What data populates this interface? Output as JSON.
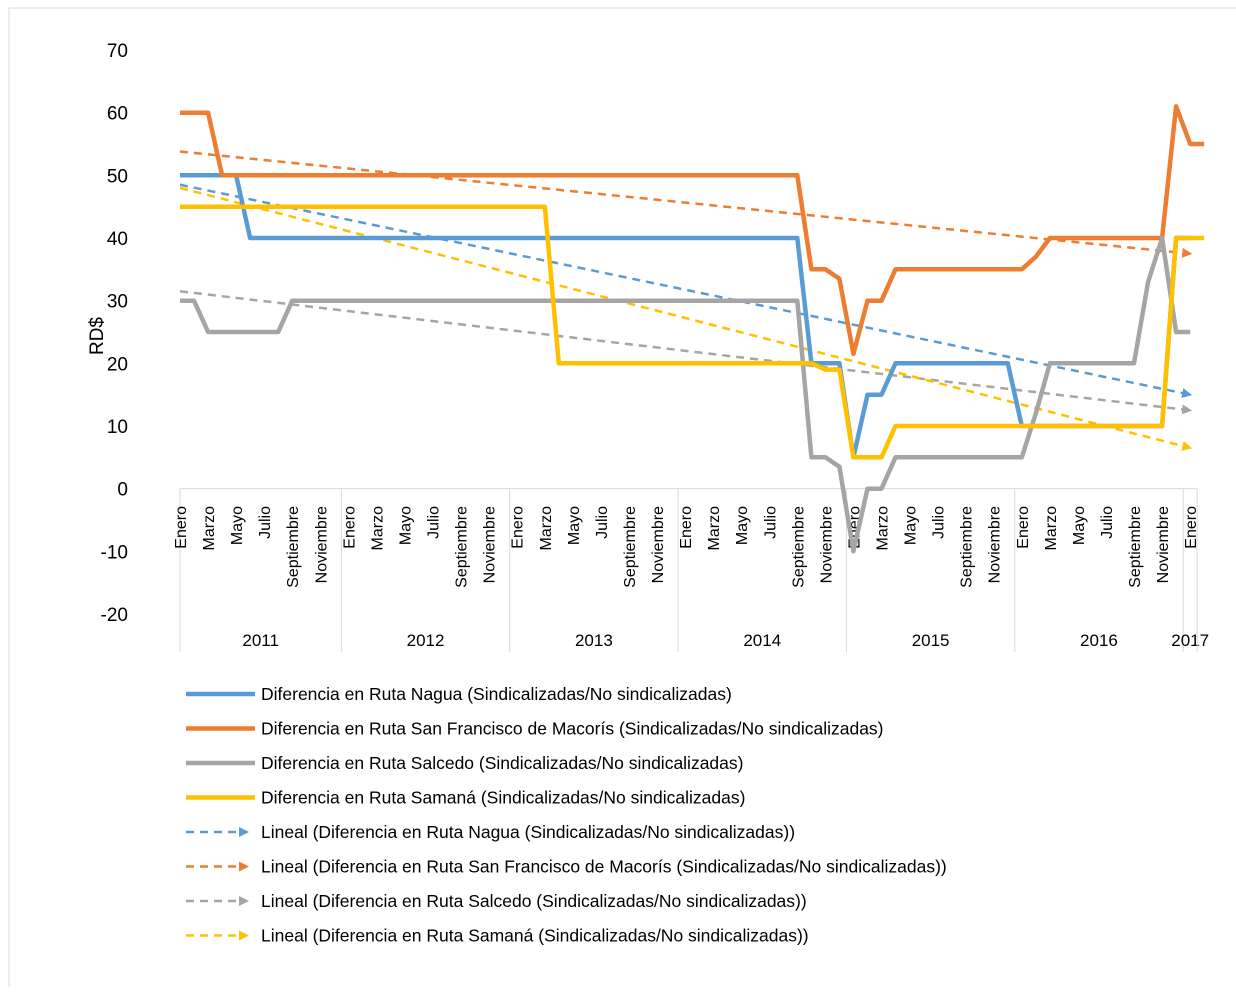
{
  "chart_data": {
    "type": "line",
    "ylabel": "RD$",
    "ylim": [
      -20,
      70
    ],
    "yticks": [
      -20,
      -10,
      0,
      10,
      20,
      30,
      40,
      50,
      60,
      70
    ],
    "grid": false,
    "legend_position": "bottom",
    "years": [
      {
        "label": "2011",
        "start": 0,
        "end": 12
      },
      {
        "label": "2012",
        "start": 12,
        "end": 24
      },
      {
        "label": "2013",
        "start": 24,
        "end": 36
      },
      {
        "label": "2014",
        "start": 36,
        "end": 48
      },
      {
        "label": "2015",
        "start": 48,
        "end": 60
      },
      {
        "label": "2016",
        "start": 60,
        "end": 72
      },
      {
        "label": "2017",
        "start": 72,
        "end": 73
      }
    ],
    "month_labels": [
      {
        "i": 0,
        "label": "Enero"
      },
      {
        "i": 2,
        "label": "Marzo"
      },
      {
        "i": 4,
        "label": "Mayo"
      },
      {
        "i": 6,
        "label": "Julio"
      },
      {
        "i": 8,
        "label": "Septiembre"
      },
      {
        "i": 10,
        "label": "Noviembre"
      },
      {
        "i": 12,
        "label": "Enero"
      },
      {
        "i": 14,
        "label": "Marzo"
      },
      {
        "i": 16,
        "label": "Mayo"
      },
      {
        "i": 18,
        "label": "Julio"
      },
      {
        "i": 20,
        "label": "Septiembre"
      },
      {
        "i": 22,
        "label": "Noviembre"
      },
      {
        "i": 24,
        "label": "Enero"
      },
      {
        "i": 26,
        "label": "Marzo"
      },
      {
        "i": 28,
        "label": "Mayo"
      },
      {
        "i": 30,
        "label": "Julio"
      },
      {
        "i": 32,
        "label": "Septiembre"
      },
      {
        "i": 34,
        "label": "Noviembre"
      },
      {
        "i": 36,
        "label": "Enero"
      },
      {
        "i": 38,
        "label": "Marzo"
      },
      {
        "i": 40,
        "label": "Mayo"
      },
      {
        "i": 42,
        "label": "Julio"
      },
      {
        "i": 44,
        "label": "Septiembre"
      },
      {
        "i": 46,
        "label": "Noviembre"
      },
      {
        "i": 48,
        "label": "Enero"
      },
      {
        "i": 50,
        "label": "Marzo"
      },
      {
        "i": 52,
        "label": "Mayo"
      },
      {
        "i": 54,
        "label": "Julio"
      },
      {
        "i": 56,
        "label": "Septiembre"
      },
      {
        "i": 58,
        "label": "Noviembre"
      },
      {
        "i": 60,
        "label": "Enero"
      },
      {
        "i": 62,
        "label": "Marzo"
      },
      {
        "i": 64,
        "label": "Mayo"
      },
      {
        "i": 66,
        "label": "Julio"
      },
      {
        "i": 68,
        "label": "Septiembre"
      },
      {
        "i": 70,
        "label": "Noviembre"
      },
      {
        "i": 72,
        "label": "Enero"
      }
    ],
    "series": [
      {
        "name": "Diferencia en Ruta Nagua (Sindicalizadas/No sindicalizadas)",
        "color": "#5B9BD5",
        "style": "solid",
        "values": [
          50,
          50,
          50,
          50,
          50,
          40,
          40,
          40,
          40,
          40,
          40,
          40,
          40,
          40,
          40,
          40,
          40,
          40,
          40,
          40,
          40,
          40,
          40,
          40,
          40,
          40,
          40,
          40,
          40,
          40,
          40,
          40,
          40,
          40,
          40,
          40,
          40,
          40,
          40,
          40,
          40,
          40,
          40,
          40,
          40,
          20,
          20,
          20,
          5,
          15,
          15,
          20,
          20,
          20,
          20,
          20,
          20,
          20,
          20,
          20,
          10,
          10,
          10,
          10,
          10,
          10,
          10,
          10,
          10,
          10,
          10,
          40,
          40
        ]
      },
      {
        "name": "Diferencia en Ruta San Francisco de Macorís (Sindicalizadas/No sindicalizadas)",
        "color": "#ED7D31",
        "style": "solid",
        "values": [
          60,
          60,
          60,
          50,
          50,
          50,
          50,
          50,
          50,
          50,
          50,
          50,
          50,
          50,
          50,
          50,
          50,
          50,
          50,
          50,
          50,
          50,
          50,
          50,
          50,
          50,
          50,
          50,
          50,
          50,
          50,
          50,
          50,
          50,
          50,
          50,
          50,
          50,
          50,
          50,
          50,
          50,
          50,
          50,
          50,
          35,
          35,
          33.5,
          21.5,
          30,
          30,
          35,
          35,
          35,
          35,
          35,
          35,
          35,
          35,
          35,
          35,
          37,
          40,
          40,
          40,
          40,
          40,
          40,
          40,
          40,
          40,
          61,
          55,
          55
        ]
      },
      {
        "name": "Diferencia en Ruta Salcedo (Sindicalizadas/No sindicalizadas)",
        "color": "#A5A5A5",
        "style": "solid",
        "values": [
          30,
          30,
          25,
          25,
          25,
          25,
          25,
          25,
          30,
          30,
          30,
          30,
          30,
          30,
          30,
          30,
          30,
          30,
          30,
          30,
          30,
          30,
          30,
          30,
          30,
          30,
          30,
          30,
          30,
          30,
          30,
          30,
          30,
          30,
          30,
          30,
          30,
          30,
          30,
          30,
          30,
          30,
          30,
          30,
          30,
          5,
          5,
          3.5,
          -10,
          0,
          0,
          5,
          5,
          5,
          5,
          5,
          5,
          5,
          5,
          5,
          5,
          12,
          20,
          20,
          20,
          20,
          20,
          20,
          20,
          33,
          40,
          25,
          25
        ]
      },
      {
        "name": "Diferencia en Ruta Samaná (Sindicalizadas/No sindicalizadas)",
        "color": "#FFC000",
        "style": "solid",
        "values": [
          45,
          45,
          45,
          45,
          45,
          45,
          45,
          45,
          45,
          45,
          45,
          45,
          45,
          45,
          45,
          45,
          45,
          45,
          45,
          45,
          45,
          45,
          45,
          45,
          45,
          45,
          45,
          20,
          20,
          20,
          20,
          20,
          20,
          20,
          20,
          20,
          20,
          20,
          20,
          20,
          20,
          20,
          20,
          20,
          20,
          20,
          19,
          19,
          5,
          5,
          5,
          10,
          10,
          10,
          10,
          10,
          10,
          10,
          10,
          10,
          10,
          10,
          10,
          10,
          10,
          10,
          10,
          10,
          10,
          10,
          10,
          40,
          40,
          40
        ]
      },
      {
        "name": "Lineal (Diferencia en Ruta Nagua (Sindicalizadas/No sindicalizadas))",
        "color": "#5B9BD5",
        "style": "dashed",
        "trend": [
          48.5,
          15
        ]
      },
      {
        "name": "Lineal (Diferencia en Ruta San Francisco de Macorís (Sindicalizadas/No sindicalizadas))",
        "color": "#ED7D31",
        "style": "dashed",
        "trend": [
          53.8,
          37.5
        ]
      },
      {
        "name": "Lineal (Diferencia en Ruta Salcedo (Sindicalizadas/No sindicalizadas))",
        "color": "#A5A5A5",
        "style": "dashed",
        "trend": [
          31.5,
          12.5
        ]
      },
      {
        "name": "Lineal (Diferencia en Ruta Samaná (Sindicalizadas/No sindicalizadas))",
        "color": "#FFC000",
        "style": "dashed",
        "trend": [
          48,
          6.5
        ]
      }
    ]
  }
}
